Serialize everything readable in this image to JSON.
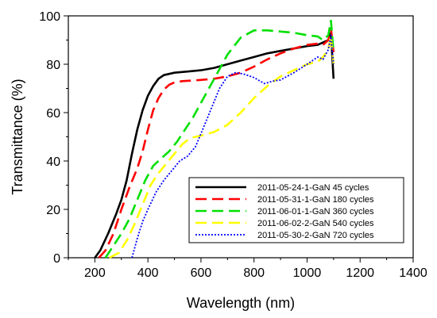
{
  "chart_data": {
    "type": "line",
    "title": "",
    "xlabel": "Wavelength (nm)",
    "ylabel": "Transmittance (%)",
    "xlim": [
      100,
      1400
    ],
    "ylim": [
      0,
      100
    ],
    "xticks": [
      200,
      400,
      600,
      800,
      1000,
      1200,
      1400
    ],
    "yticks": [
      0,
      20,
      40,
      60,
      80,
      100
    ],
    "grid": false,
    "legend_position": "bottom-right",
    "series": [
      {
        "name": "2011-05-24-1-GaN 45 cycles",
        "color": "#000000",
        "dash": "solid",
        "x": [
          200,
          220,
          250,
          280,
          300,
          320,
          340,
          360,
          380,
          400,
          420,
          440,
          460,
          480,
          500,
          520,
          550,
          600,
          650,
          700,
          750,
          800,
          850,
          900,
          950,
          1000,
          1040,
          1060,
          1080,
          1090,
          1100
        ],
        "y": [
          0,
          3,
          10,
          18,
          24,
          32,
          43,
          53,
          61,
          67,
          71,
          74,
          75.5,
          76,
          76.5,
          76.7,
          77,
          77.5,
          78.5,
          80,
          81.5,
          83,
          84.5,
          85.5,
          86.5,
          87.5,
          88,
          89,
          90,
          93,
          74
        ]
      },
      {
        "name": "2011-05-31-1-GaN 180 cycles",
        "color": "#ff0000",
        "dash": "long-dash",
        "x": [
          215,
          240,
          270,
          300,
          330,
          360,
          380,
          400,
          420,
          440,
          460,
          480,
          500,
          530,
          560,
          600,
          650,
          700,
          750,
          800,
          850,
          900,
          950,
          1000,
          1040,
          1060,
          1080,
          1090,
          1100
        ],
        "y": [
          0,
          3,
          10,
          20,
          29,
          37,
          44,
          53,
          61,
          66,
          69.5,
          71.5,
          72.5,
          73,
          73.2,
          73.5,
          74,
          75,
          76.5,
          79,
          82,
          84.5,
          86.5,
          88,
          88.5,
          88,
          90,
          95,
          85
        ]
      },
      {
        "name": "2011-06-01-1-GaN 360 cycles",
        "color": "#00e000",
        "dash": "long-dash",
        "x": [
          240,
          270,
          300,
          330,
          360,
          390,
          420,
          450,
          480,
          510,
          540,
          570,
          600,
          630,
          660,
          700,
          750,
          800,
          850,
          900,
          950,
          1000,
          1040,
          1060,
          1080,
          1090,
          1100
        ],
        "y": [
          0,
          5,
          10,
          16,
          24,
          32,
          38,
          41,
          44,
          48,
          53,
          58,
          64,
          70,
          76,
          84,
          91,
          94,
          94,
          93.5,
          93,
          92,
          91.5,
          90,
          92,
          98,
          85
        ]
      },
      {
        "name": "2011-06-02-2-GaN 540 cycles",
        "color": "#ffff00",
        "dash": "long-dash",
        "x": [
          255,
          290,
          320,
          350,
          380,
          410,
          440,
          470,
          500,
          530,
          560,
          600,
          650,
          700,
          750,
          800,
          850,
          900,
          950,
          1000,
          1040,
          1060,
          1080,
          1090,
          1100
        ],
        "y": [
          0,
          2,
          7,
          14,
          22,
          30,
          35,
          39,
          43,
          47,
          49.5,
          50.5,
          52,
          55,
          60,
          66,
          71,
          75,
          77.5,
          80,
          81,
          83,
          86,
          92,
          80
        ]
      },
      {
        "name": "2011-05-30-2-GaN 720 cycles",
        "color": "#0000ff",
        "dash": "dotted",
        "x": [
          340,
          360,
          380,
          400,
          430,
          460,
          490,
          520,
          550,
          580,
          610,
          640,
          670,
          700,
          730,
          760,
          800,
          840,
          870,
          900,
          950,
          1000,
          1040,
          1060,
          1080,
          1090,
          1100
        ],
        "y": [
          0,
          8,
          15,
          20,
          27,
          32,
          36,
          40,
          42,
          46,
          54,
          62,
          70,
          75,
          76.5,
          76,
          74.5,
          72,
          73,
          73.5,
          76.5,
          80,
          83,
          82,
          86,
          92,
          80
        ]
      }
    ]
  }
}
